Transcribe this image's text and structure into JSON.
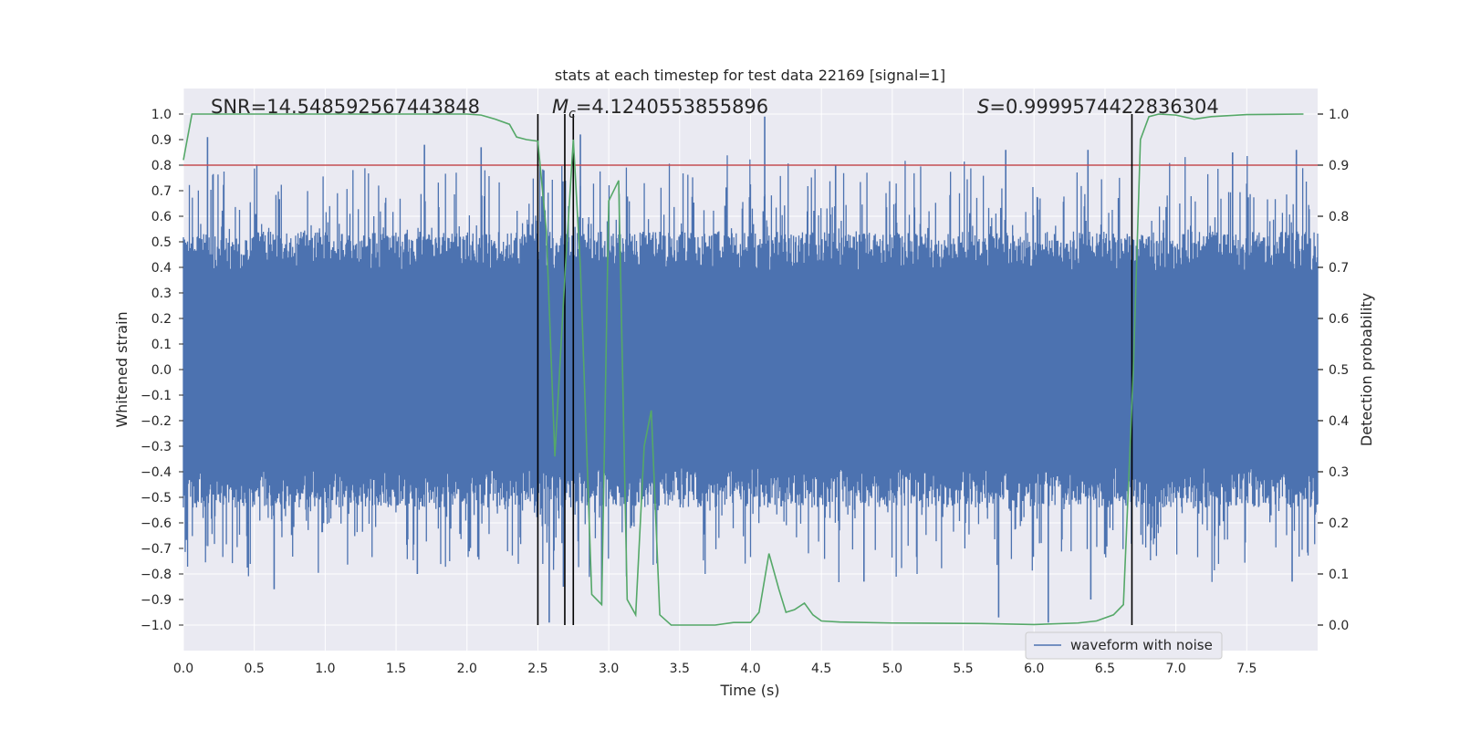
{
  "chart_data": {
    "type": "line",
    "title": "stats at each timestep for test data 22169 [signal=1]",
    "xlabel": "Time (s)",
    "ylabel": "Whitened strain",
    "y2label": "Detection probability",
    "xlim": [
      0.0,
      8.0
    ],
    "ylim": [
      -1.1,
      1.1
    ],
    "y2lim": [
      -0.05,
      1.05
    ],
    "grid": true,
    "x_ticks": [
      "0.0",
      "0.5",
      "1.0",
      "1.5",
      "2.0",
      "2.5",
      "3.0",
      "3.5",
      "4.0",
      "4.5",
      "5.0",
      "5.5",
      "6.0",
      "6.5",
      "7.0",
      "7.5"
    ],
    "y_ticks": [
      "1.0",
      "0.9",
      "0.8",
      "0.7",
      "0.6",
      "0.5",
      "0.4",
      "0.3",
      "0.2",
      "0.1",
      "0.0",
      "−0.1",
      "−0.2",
      "−0.3",
      "−0.4",
      "−0.5",
      "−0.6",
      "−0.7",
      "−0.8",
      "−0.9",
      "−1.0"
    ],
    "y2_ticks": [
      "1.0",
      "0.9",
      "0.8",
      "0.7",
      "0.6",
      "0.5",
      "0.4",
      "0.3",
      "0.2",
      "0.1",
      "0.0"
    ],
    "annotations": {
      "snr": "SNR=14.548592567443848",
      "mc_symbol": "M",
      "mc_subscript": "c",
      "mc_value": "=4.1240553855896",
      "s_symbol": "S",
      "s_value": "=0.9999574422836304"
    },
    "legend": {
      "label": "waveform with noise",
      "placement": "lower-right"
    },
    "threshold_probability": 0.9,
    "vertical_markers_s": [
      2.5,
      2.69,
      2.75,
      6.69
    ],
    "series": [
      {
        "name": "waveform with noise",
        "axis": "left",
        "style": "dense-noise",
        "x_range": [
          0.0,
          8.0
        ],
        "envelope_typical": 0.45,
        "peaks": [
          {
            "x": 0.17,
            "y": 0.91
          },
          {
            "x": 0.64,
            "y": -0.86
          },
          {
            "x": 1.7,
            "y": 0.88
          },
          {
            "x": 1.65,
            "y": -0.8
          },
          {
            "x": 2.1,
            "y": 0.87
          },
          {
            "x": 2.58,
            "y": -0.99
          },
          {
            "x": 2.68,
            "y": -0.85
          },
          {
            "x": 2.8,
            "y": 0.92
          },
          {
            "x": 2.95,
            "y": -0.92
          },
          {
            "x": 4.1,
            "y": 0.99
          },
          {
            "x": 4.6,
            "y": 0.8
          },
          {
            "x": 4.8,
            "y": -0.83
          },
          {
            "x": 5.8,
            "y": 0.86
          },
          {
            "x": 5.75,
            "y": -0.97
          },
          {
            "x": 6.1,
            "y": -0.99
          },
          {
            "x": 6.38,
            "y": 0.86
          },
          {
            "x": 6.4,
            "y": -0.9
          },
          {
            "x": 7.4,
            "y": 0.85
          },
          {
            "x": 7.85,
            "y": 0.86
          },
          {
            "x": 7.82,
            "y": -0.83
          }
        ]
      },
      {
        "name": "",
        "axis": "right",
        "color": "#55a868",
        "x": [
          0.0,
          0.06,
          0.5,
          1.0,
          1.5,
          2.0,
          2.1,
          2.2,
          2.3,
          2.35,
          2.42,
          2.5,
          2.56,
          2.62,
          2.69,
          2.75,
          2.8,
          2.88,
          2.95,
          3.0,
          3.07,
          3.13,
          3.19,
          3.25,
          3.3,
          3.36,
          3.44,
          3.75,
          3.88,
          4.0,
          4.06,
          4.13,
          4.2,
          4.25,
          4.31,
          4.38,
          4.44,
          4.5,
          4.63,
          5.0,
          5.63,
          6.0,
          6.31,
          6.44,
          6.56,
          6.63,
          6.7,
          6.75,
          6.81,
          6.88,
          7.0,
          7.13,
          7.25,
          7.5,
          7.9
        ],
        "y": [
          0.91,
          1.0,
          1.0,
          1.0,
          1.0,
          1.0,
          0.998,
          0.99,
          0.98,
          0.955,
          0.95,
          0.947,
          0.77,
          0.33,
          0.68,
          0.95,
          0.7,
          0.06,
          0.04,
          0.83,
          0.87,
          0.05,
          0.02,
          0.35,
          0.42,
          0.02,
          0.0,
          0.0,
          0.005,
          0.005,
          0.025,
          0.14,
          0.07,
          0.025,
          0.03,
          0.043,
          0.02,
          0.008,
          0.006,
          0.004,
          0.003,
          0.001,
          0.004,
          0.008,
          0.02,
          0.04,
          0.5,
          0.95,
          0.995,
          1.0,
          0.998,
          0.99,
          0.995,
          0.999,
          1.0
        ]
      }
    ]
  }
}
